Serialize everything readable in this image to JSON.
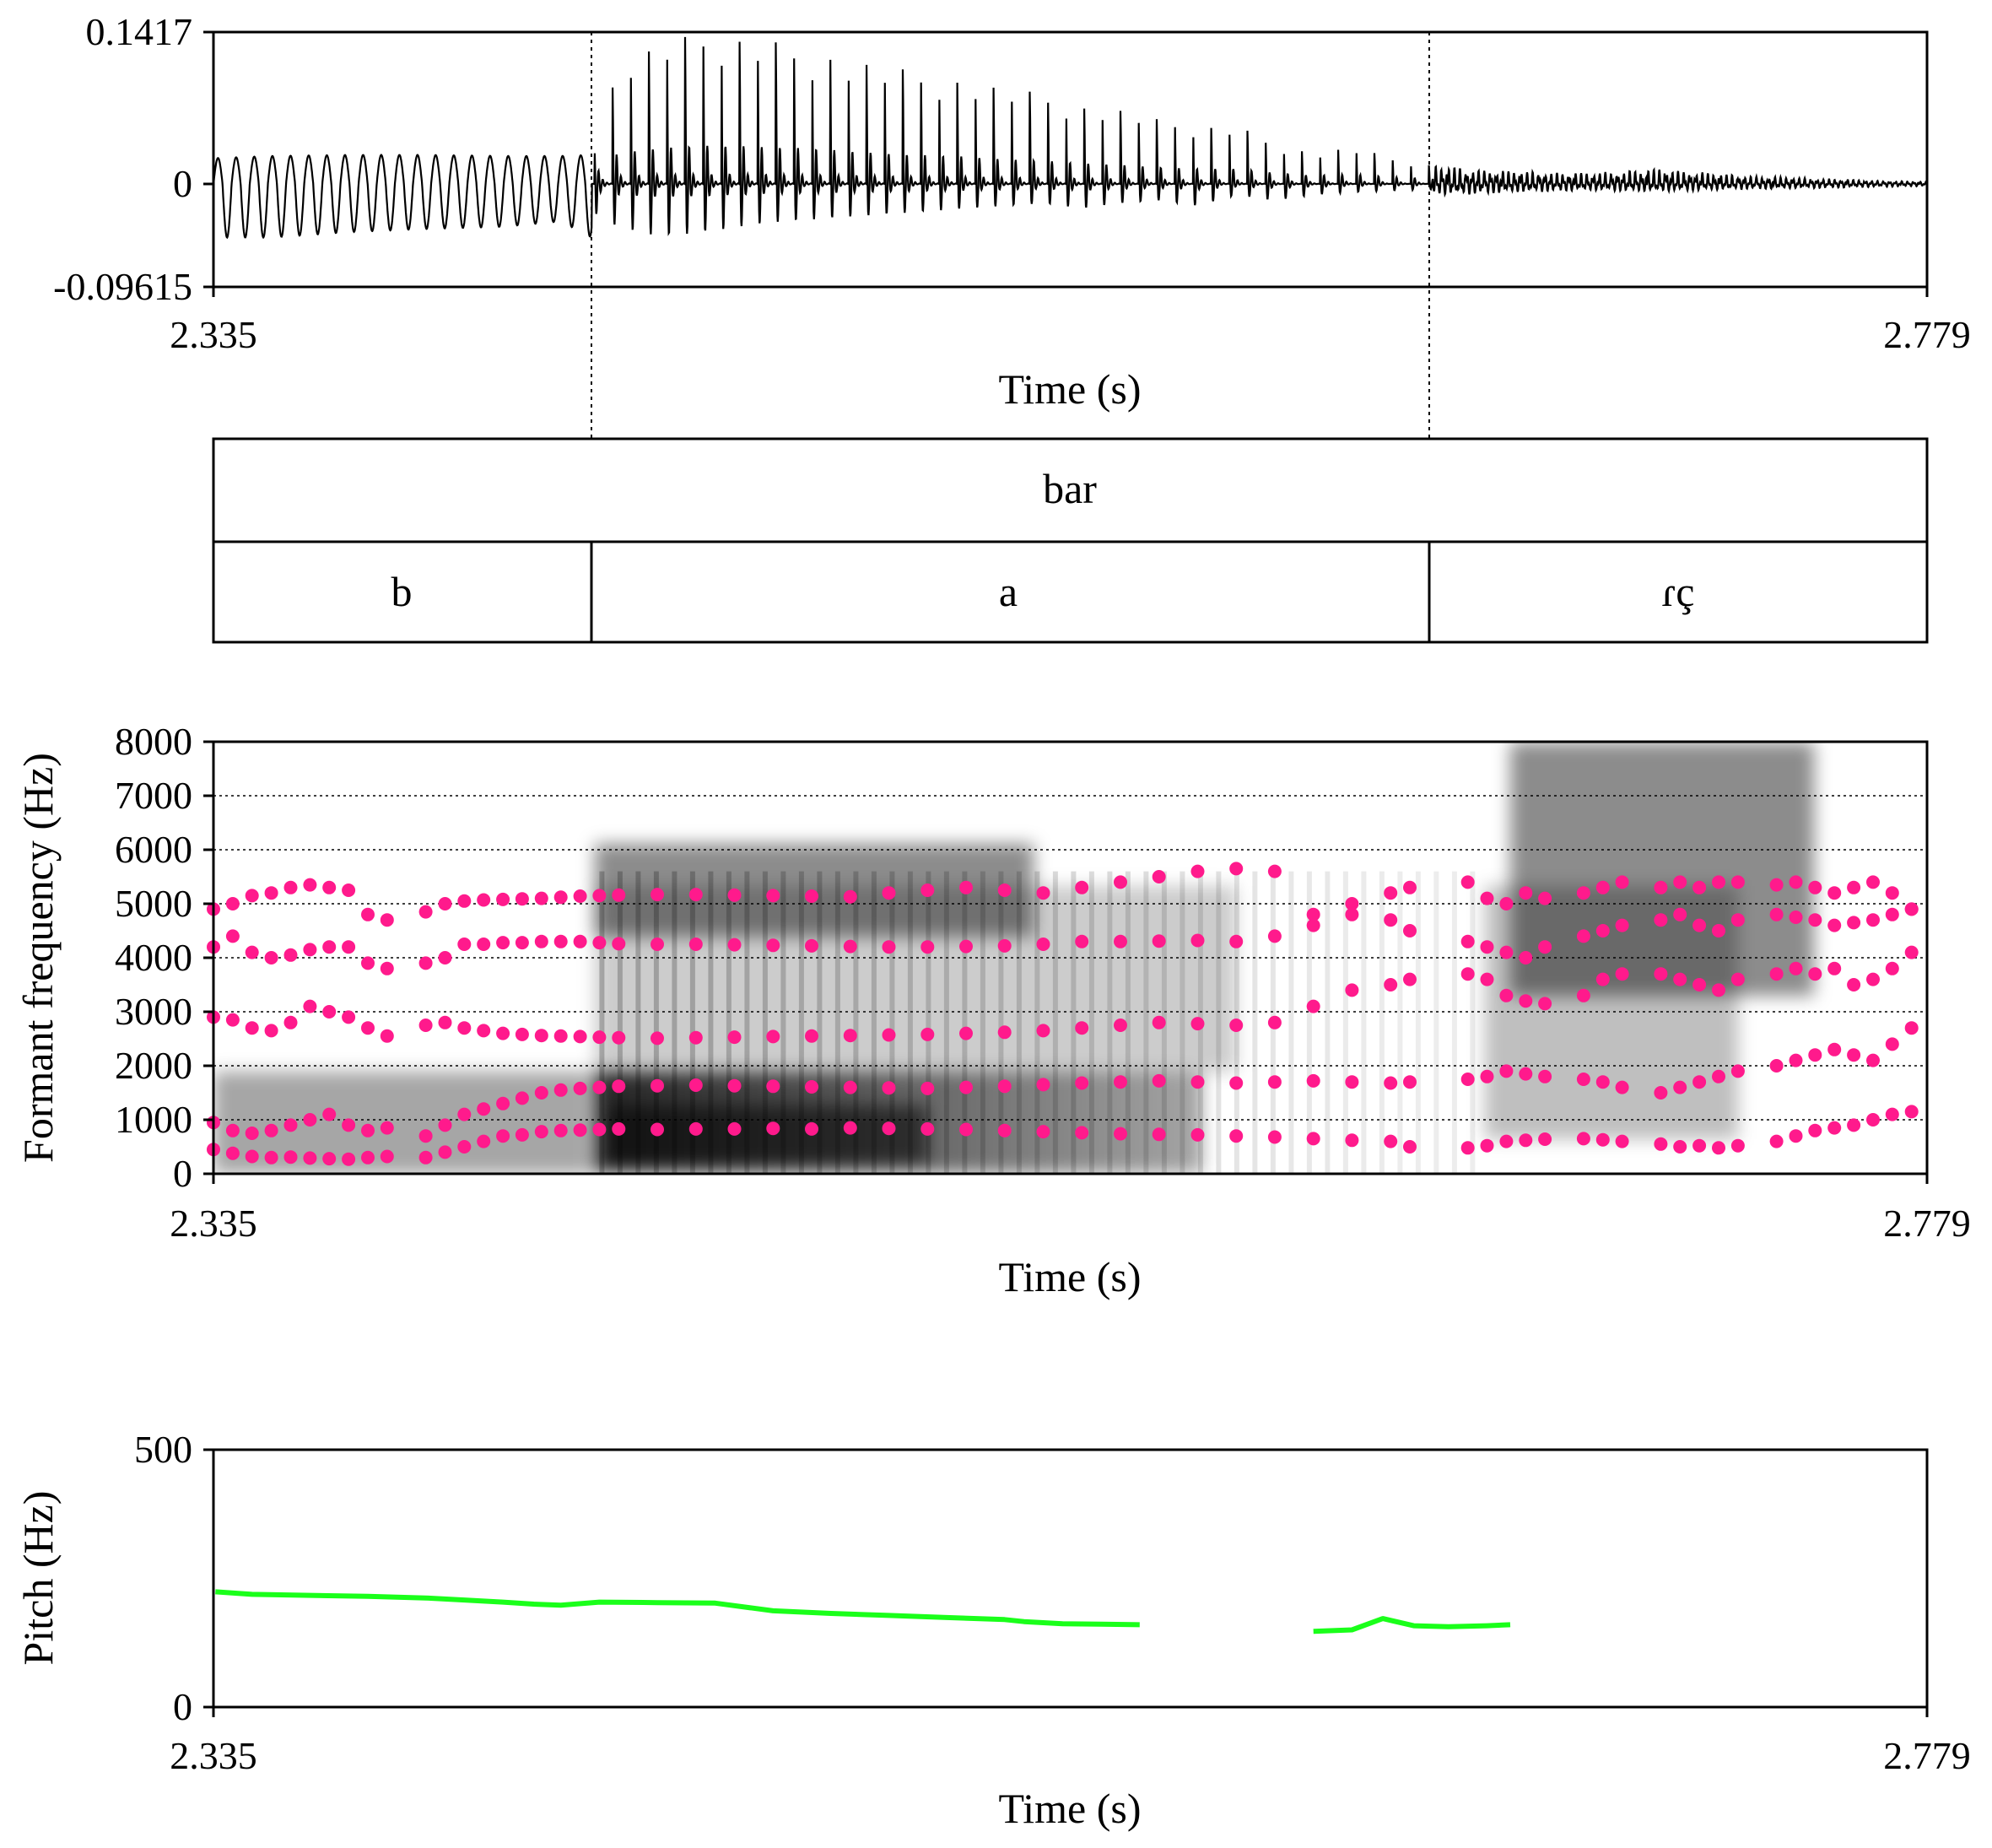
{
  "chart_data": [
    {
      "type": "line",
      "panel": "waveform",
      "title": "",
      "xlabel": "Time (s)",
      "ylabel": "",
      "xlim": [
        2.335,
        2.779
      ],
      "ylim": [
        -0.09615,
        0.1417
      ],
      "x_tick_labels": [
        "2.335",
        "2.779"
      ],
      "y_tick_labels": [
        "0.1417",
        "0",
        "-0.09615"
      ],
      "boundaries": [
        2.433,
        2.651
      ],
      "envelope": {
        "x": [
          2.335,
          2.35,
          2.37,
          2.39,
          2.41,
          2.425,
          2.433,
          2.44,
          2.45,
          2.46,
          2.47,
          2.48,
          2.49,
          2.5,
          2.51,
          2.52,
          2.53,
          2.54,
          2.55,
          2.56,
          2.57,
          2.58,
          2.59,
          2.6,
          2.61,
          2.62,
          2.63,
          2.64,
          2.651,
          2.66,
          2.67,
          2.69,
          2.71,
          2.73,
          2.75,
          2.765,
          2.779
        ],
        "upper": [
          0.024,
          0.026,
          0.027,
          0.027,
          0.026,
          0.026,
          0.027,
          0.115,
          0.13,
          0.14,
          0.14,
          0.135,
          0.13,
          0.12,
          0.11,
          0.105,
          0.1,
          0.09,
          0.085,
          0.075,
          0.07,
          0.06,
          0.055,
          0.055,
          0.04,
          0.03,
          0.035,
          0.025,
          0.018,
          0.014,
          0.012,
          0.01,
          0.014,
          0.008,
          0.005,
          0.003,
          0.002
        ],
        "lower": [
          -0.05,
          -0.05,
          -0.045,
          -0.042,
          -0.04,
          -0.035,
          -0.05,
          -0.08,
          -0.095,
          -0.09,
          -0.08,
          -0.07,
          -0.065,
          -0.06,
          -0.055,
          -0.05,
          -0.045,
          -0.04,
          -0.035,
          -0.045,
          -0.035,
          -0.03,
          -0.04,
          -0.02,
          -0.03,
          -0.02,
          -0.015,
          -0.012,
          -0.01,
          -0.01,
          -0.008,
          -0.006,
          -0.007,
          -0.005,
          -0.004,
          -0.003,
          -0.002
        ]
      }
    },
    {
      "type": "table",
      "panel": "textgrid",
      "tiers": [
        {
          "intervals": [
            {
              "start": 2.335,
              "end": 2.779,
              "label": "bar"
            }
          ]
        },
        {
          "intervals": [
            {
              "start": 2.335,
              "end": 2.433,
              "label": "b"
            },
            {
              "start": 2.433,
              "end": 2.651,
              "label": "a"
            },
            {
              "start": 2.651,
              "end": 2.779,
              "label": "ɾç"
            }
          ]
        }
      ]
    },
    {
      "type": "scatter",
      "panel": "spectrogram",
      "title": "",
      "xlabel": "Time (s)",
      "ylabel": "Formant frequency (Hz)",
      "xlim": [
        2.335,
        2.779
      ],
      "ylim": [
        0,
        8000
      ],
      "x_tick_labels": [
        "2.335",
        "2.779"
      ],
      "y_ticks": [
        0,
        1000,
        2000,
        3000,
        4000,
        5000,
        6000,
        7000,
        8000
      ],
      "y_tick_labels": [
        "0",
        "1000",
        "2000",
        "3000",
        "4000",
        "5000",
        "6000",
        "7000",
        "8000"
      ],
      "grid": true,
      "point_color": "#ff1a8c",
      "formant_points": {
        "x": [
          2.335,
          2.34,
          2.345,
          2.35,
          2.355,
          2.36,
          2.365,
          2.37,
          2.375,
          2.38,
          2.39,
          2.395,
          2.4,
          2.405,
          2.41,
          2.415,
          2.42,
          2.425,
          2.43,
          2.435,
          2.44,
          2.45,
          2.46,
          2.47,
          2.48,
          2.49,
          2.5,
          2.51,
          2.52,
          2.53,
          2.54,
          2.55,
          2.56,
          2.57,
          2.58,
          2.59,
          2.6,
          2.61,
          2.62,
          2.63,
          2.64,
          2.645,
          2.66,
          2.665,
          2.67,
          2.675,
          2.68,
          2.69,
          2.695,
          2.7,
          2.71,
          2.715,
          2.72,
          2.725,
          2.73,
          2.74,
          2.745,
          2.75,
          2.755,
          2.76,
          2.765,
          2.77,
          2.775
        ],
        "F1": [
          450,
          380,
          320,
          300,
          310,
          290,
          280,
          270,
          300,
          320,
          300,
          400,
          500,
          600,
          700,
          720,
          780,
          800,
          810,
          820,
          830,
          820,
          830,
          830,
          840,
          830,
          850,
          840,
          830,
          820,
          800,
          780,
          760,
          740,
          730,
          720,
          700,
          680,
          650,
          620,
          600,
          500,
          480,
          520,
          600,
          620,
          640,
          650,
          630,
          600,
          550,
          500,
          520,
          480,
          520,
          600,
          700,
          800,
          850,
          900,
          1000,
          1100,
          1150
        ],
        "F2": [
          950,
          800,
          750,
          800,
          900,
          1000,
          1100,
          900,
          800,
          850,
          700,
          900,
          1100,
          1200,
          1300,
          1400,
          1500,
          1550,
          1580,
          1600,
          1620,
          1630,
          1640,
          1630,
          1620,
          1610,
          1600,
          1590,
          1580,
          1600,
          1620,
          1650,
          1680,
          1700,
          1720,
          1700,
          1680,
          1700,
          1720,
          1700,
          1680,
          1700,
          1750,
          1800,
          1900,
          1850,
          1800,
          1750,
          1700,
          1600,
          1500,
          1600,
          1700,
          1800,
          1900,
          2000,
          2100,
          2200,
          2300,
          2200,
          2100,
          2400,
          2700
        ],
        "F3": [
          2900,
          2850,
          2700,
          2650,
          2800,
          3100,
          3000,
          2900,
          2700,
          2550,
          2750,
          2800,
          2700,
          2650,
          2600,
          2580,
          2560,
          2550,
          2540,
          2530,
          2520,
          2510,
          2520,
          2530,
          2540,
          2550,
          2560,
          2570,
          2580,
          2600,
          2620,
          2650,
          2700,
          2750,
          2800,
          2780,
          2750,
          2800,
          3100,
          3400,
          3500,
          3600,
          3700,
          3600,
          3300,
          3200,
          3150,
          3300,
          3600,
          3700,
          3700,
          3600,
          3500,
          3400,
          3600,
          3700,
          3800,
          3700,
          3800,
          3500,
          3600,
          3800,
          4100
        ],
        "F4": [
          4200,
          4400,
          4100,
          4000,
          4050,
          4150,
          4200,
          4200,
          3900,
          3800,
          3900,
          4000,
          4250,
          4250,
          4280,
          4280,
          4300,
          4300,
          4300,
          4280,
          4260,
          4250,
          4250,
          4240,
          4230,
          4220,
          4210,
          4200,
          4200,
          4210,
          4220,
          4250,
          4300,
          4300,
          4310,
          4320,
          4300,
          4400,
          4600,
          4800,
          4700,
          4500,
          4300,
          4200,
          4100,
          4000,
          4200,
          4400,
          4500,
          4600,
          4700,
          4800,
          4600,
          4500,
          4700,
          4800,
          4750,
          4700,
          4600,
          4650,
          4700,
          4800,
          4900
        ],
        "F5": [
          4900,
          5000,
          5150,
          5200,
          5300,
          5350,
          5300,
          5250,
          4800,
          4700,
          4850,
          5000,
          5050,
          5070,
          5080,
          5090,
          5100,
          5120,
          5140,
          5150,
          5160,
          5170,
          5170,
          5160,
          5150,
          5140,
          5130,
          5200,
          5250,
          5300,
          5250,
          5200,
          5300,
          5400,
          5500,
          5600,
          5650,
          5600,
          4800,
          5000,
          5200,
          5300,
          5400,
          5100,
          5000,
          5200,
          5100,
          5200,
          5300,
          5400,
          5300,
          5400,
          5300,
          5400,
          5400,
          5350,
          5400,
          5300,
          5200,
          5300,
          5400,
          5200,
          4900
        ]
      }
    },
    {
      "type": "line",
      "panel": "pitch",
      "title": "",
      "xlabel": "Time (s)",
      "ylabel": "Pitch (Hz)",
      "xlim": [
        2.335,
        2.779
      ],
      "ylim": [
        0,
        500
      ],
      "x_tick_labels": [
        "2.335",
        "2.779"
      ],
      "y_tick_labels": [
        "500",
        "0"
      ],
      "line_color": "#1aff1a",
      "series": [
        {
          "x": [
            2.3355,
            2.345,
            2.36,
            2.375,
            2.39,
            2.4,
            2.41,
            2.418,
            2.425,
            2.435,
            2.45,
            2.465,
            2.48,
            2.495,
            2.51,
            2.525,
            2.54,
            2.545,
            2.555,
            2.565,
            2.575
          ],
          "y": [
            224,
            219,
            217,
            215,
            212,
            208,
            204,
            200,
            198,
            204,
            203,
            202,
            187,
            182,
            178,
            174,
            170,
            166,
            162,
            161,
            160
          ]
        },
        {
          "x": [
            2.62,
            2.63,
            2.638,
            2.646,
            2.655,
            2.665,
            2.671
          ],
          "y": [
            147,
            150,
            172,
            158,
            156,
            158,
            160
          ]
        }
      ]
    }
  ]
}
